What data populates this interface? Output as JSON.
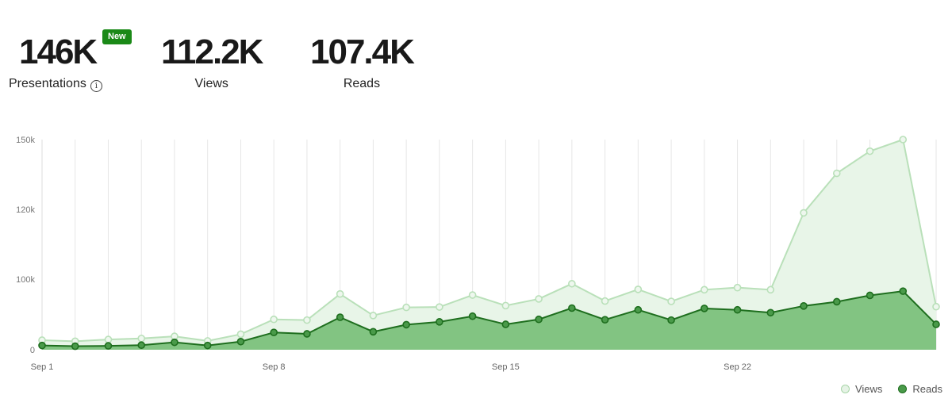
{
  "stats": {
    "presentations": {
      "value": "146K",
      "label": "Presentations",
      "badge": "New"
    },
    "views": {
      "value": "112.2K",
      "label": "Views"
    },
    "reads": {
      "value": "107.4K",
      "label": "Reads"
    }
  },
  "colors": {
    "views_line": "#b9e0b9",
    "views_fill": "#e8f5e8",
    "reads_line": "#1e6e1e",
    "reads_fill": "#82c482",
    "badge": "#1a8917"
  },
  "chart_data": {
    "type": "area",
    "x": [
      "Sep 1",
      "Sep 2",
      "Sep 3",
      "Sep 4",
      "Sep 5",
      "Sep 6",
      "Sep 7",
      "Sep 8",
      "Sep 9",
      "Sep 10",
      "Sep 11",
      "Sep 12",
      "Sep 13",
      "Sep 14",
      "Sep 15",
      "Sep 16",
      "Sep 17",
      "Sep 18",
      "Sep 19",
      "Sep 20",
      "Sep 21",
      "Sep 22",
      "Sep 23",
      "Sep 24",
      "Sep 25",
      "Sep 26",
      "Sep 27",
      "Sep 28"
    ],
    "xticks": [
      "Sep 1",
      "Sep 8",
      "Sep 15",
      "Sep 22"
    ],
    "yticks": [
      "0",
      "100k",
      "120k",
      "150k"
    ],
    "ylim": [
      0,
      150000
    ],
    "series": [
      {
        "name": "Views",
        "values": [
          13500,
          12000,
          14500,
          16000,
          19000,
          12500,
          22000,
          43000,
          42000,
          79000,
          48500,
          60000,
          60500,
          77500,
          62500,
          72000,
          93500,
          69000,
          85500,
          68500,
          85000,
          88000,
          85000,
          119000,
          135500,
          145000,
          150000,
          61000
        ]
      },
      {
        "name": "Reads",
        "values": [
          6000,
          5000,
          5500,
          6500,
          10500,
          6000,
          11500,
          24500,
          22500,
          46000,
          25500,
          35500,
          39500,
          47500,
          36000,
          43000,
          59000,
          42500,
          56500,
          42000,
          58500,
          56500,
          52500,
          62000,
          68000,
          77000,
          83000,
          36000
        ]
      }
    ],
    "legend": [
      "Views",
      "Reads"
    ],
    "legend_position": "bottom-right",
    "grid": "vertical"
  }
}
